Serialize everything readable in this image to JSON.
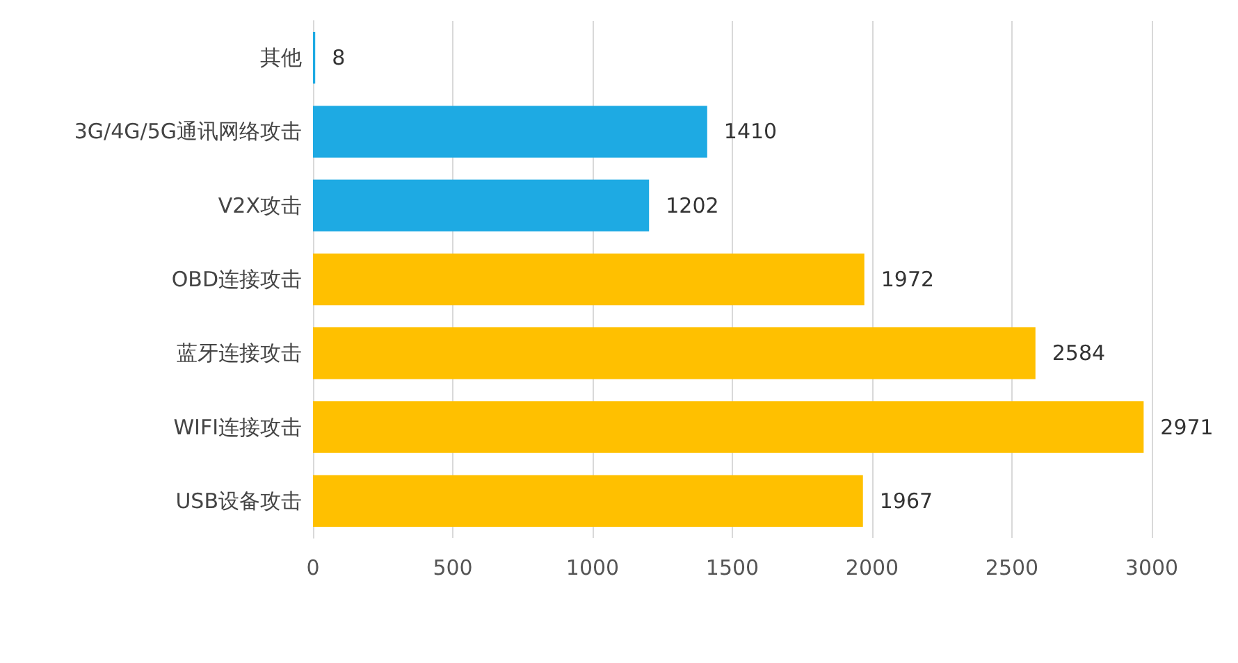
{
  "chart_data": {
    "type": "bar",
    "orientation": "horizontal",
    "categories": [
      "其他",
      "3G/4G/5G通讯网络攻击",
      "V2X攻击",
      "OBD连接攻击",
      "蓝牙连接攻击",
      "WIFI连接攻击",
      "USB设备攻击"
    ],
    "values": [
      8,
      1410,
      1202,
      1972,
      2584,
      2971,
      1967
    ],
    "colors": [
      "#1eaae3",
      "#1eaae3",
      "#1eaae3",
      "#ffc000",
      "#ffc000",
      "#ffc000",
      "#ffc000"
    ],
    "xlim": [
      0,
      3000
    ],
    "xticks": [
      0,
      500,
      1000,
      1500,
      2000,
      2500,
      3000
    ],
    "grid": "x",
    "data_labels": true
  }
}
